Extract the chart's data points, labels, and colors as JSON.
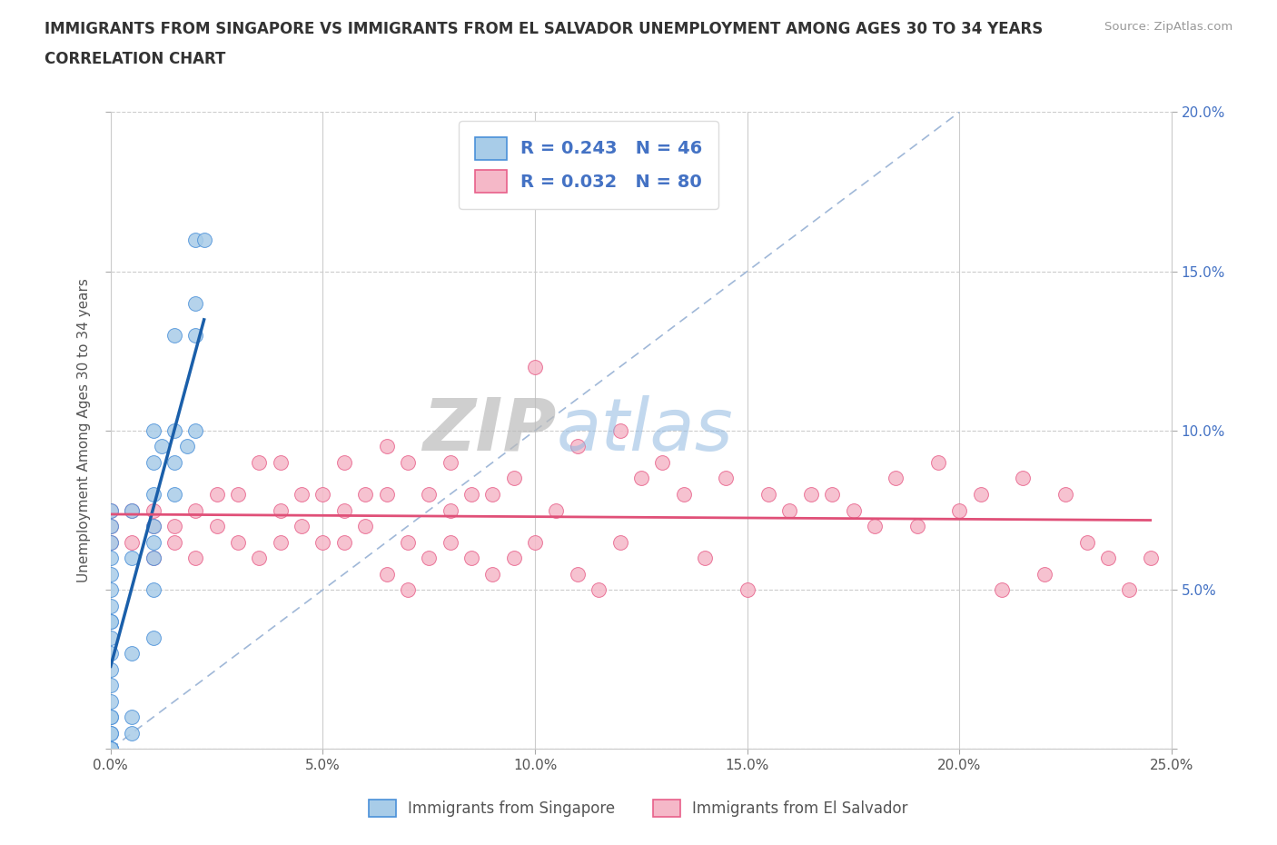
{
  "title_line1": "IMMIGRANTS FROM SINGAPORE VS IMMIGRANTS FROM EL SALVADOR UNEMPLOYMENT AMONG AGES 30 TO 34 YEARS",
  "title_line2": "CORRELATION CHART",
  "source_text": "Source: ZipAtlas.com",
  "ylabel": "Unemployment Among Ages 30 to 34 years",
  "watermark_zip": "ZIP",
  "watermark_atlas": "atlas",
  "r_singapore": 0.243,
  "n_singapore": 46,
  "r_elsalvador": 0.032,
  "n_elsalvador": 80,
  "xlim": [
    0.0,
    0.25
  ],
  "ylim": [
    0.0,
    0.2
  ],
  "xticks": [
    0.0,
    0.05,
    0.1,
    0.15,
    0.2,
    0.25
  ],
  "yticks": [
    0.0,
    0.05,
    0.1,
    0.15,
    0.2
  ],
  "xtick_labels": [
    "0.0%",
    "5.0%",
    "10.0%",
    "15.0%",
    "20.0%",
    "25.0%"
  ],
  "ytick_labels": [
    "",
    "5.0%",
    "10.0%",
    "15.0%",
    "20.0%"
  ],
  "color_singapore": "#a8cce8",
  "color_elsalvador": "#f5b8c8",
  "edge_singapore": "#4a90d9",
  "edge_elsalvador": "#e8608a",
  "trendline_singapore": "#1a5faa",
  "trendline_elsalvador": "#e05078",
  "diagonal_color": "#a0b8d8",
  "sg_x": [
    0.0,
    0.0,
    0.0,
    0.0,
    0.0,
    0.0,
    0.0,
    0.0,
    0.0,
    0.0,
    0.0,
    0.0,
    0.0,
    0.0,
    0.0,
    0.0,
    0.0,
    0.0,
    0.0,
    0.0,
    0.0,
    0.0,
    0.005,
    0.005,
    0.005,
    0.005,
    0.005,
    0.01,
    0.01,
    0.01,
    0.01,
    0.01,
    0.01,
    0.01,
    0.01,
    0.012,
    0.015,
    0.015,
    0.015,
    0.015,
    0.018,
    0.02,
    0.02,
    0.02,
    0.02,
    0.022
  ],
  "sg_y": [
    0.0,
    0.0,
    0.0,
    0.0,
    0.005,
    0.005,
    0.01,
    0.01,
    0.015,
    0.02,
    0.025,
    0.03,
    0.035,
    0.04,
    0.04,
    0.045,
    0.05,
    0.055,
    0.06,
    0.065,
    0.07,
    0.075,
    0.005,
    0.01,
    0.03,
    0.06,
    0.075,
    0.035,
    0.05,
    0.06,
    0.065,
    0.07,
    0.08,
    0.09,
    0.1,
    0.095,
    0.08,
    0.09,
    0.1,
    0.13,
    0.095,
    0.1,
    0.13,
    0.14,
    0.16,
    0.16
  ],
  "es_x": [
    0.0,
    0.0,
    0.0,
    0.005,
    0.005,
    0.01,
    0.01,
    0.01,
    0.015,
    0.015,
    0.02,
    0.02,
    0.025,
    0.025,
    0.03,
    0.03,
    0.035,
    0.035,
    0.04,
    0.04,
    0.04,
    0.045,
    0.045,
    0.05,
    0.05,
    0.055,
    0.055,
    0.055,
    0.06,
    0.06,
    0.065,
    0.065,
    0.065,
    0.07,
    0.07,
    0.07,
    0.075,
    0.075,
    0.08,
    0.08,
    0.08,
    0.085,
    0.085,
    0.09,
    0.09,
    0.095,
    0.095,
    0.1,
    0.1,
    0.105,
    0.11,
    0.11,
    0.115,
    0.12,
    0.12,
    0.125,
    0.13,
    0.135,
    0.14,
    0.145,
    0.15,
    0.155,
    0.16,
    0.165,
    0.17,
    0.175,
    0.18,
    0.185,
    0.19,
    0.195,
    0.2,
    0.205,
    0.21,
    0.215,
    0.22,
    0.225,
    0.23,
    0.235,
    0.24,
    0.245
  ],
  "es_y": [
    0.07,
    0.075,
    0.065,
    0.075,
    0.065,
    0.07,
    0.06,
    0.075,
    0.07,
    0.065,
    0.075,
    0.06,
    0.07,
    0.08,
    0.065,
    0.08,
    0.06,
    0.09,
    0.065,
    0.075,
    0.09,
    0.07,
    0.08,
    0.065,
    0.08,
    0.065,
    0.075,
    0.09,
    0.07,
    0.08,
    0.055,
    0.08,
    0.095,
    0.05,
    0.065,
    0.09,
    0.06,
    0.08,
    0.065,
    0.075,
    0.09,
    0.06,
    0.08,
    0.055,
    0.08,
    0.06,
    0.085,
    0.065,
    0.12,
    0.075,
    0.055,
    0.095,
    0.05,
    0.065,
    0.1,
    0.085,
    0.09,
    0.08,
    0.06,
    0.085,
    0.05,
    0.08,
    0.075,
    0.08,
    0.08,
    0.075,
    0.07,
    0.085,
    0.07,
    0.09,
    0.075,
    0.08,
    0.05,
    0.085,
    0.055,
    0.08,
    0.065,
    0.06,
    0.05,
    0.06
  ]
}
